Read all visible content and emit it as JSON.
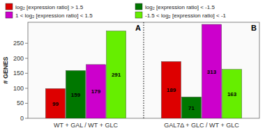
{
  "chart_data": {
    "type": "bar",
    "categories": [
      "WT + GAL / WT + GLC",
      "GAL7Δ + GLC / WT + GLC"
    ],
    "series": [
      {
        "name": "log₂ [expression ratio] > 1.5",
        "color": "#dd0000",
        "values": [
          99,
          189
        ]
      },
      {
        "name": "log₂ [expression ratio] < -1.5",
        "color": "#007700",
        "values": [
          159,
          71
        ]
      },
      {
        "name": "1 < log₂ [expression ratio] < 1.5",
        "color": "#cc00cc",
        "values": [
          179,
          313
        ]
      },
      {
        "name": "-1.5 < log₂ [expression ratio] < -1",
        "color": "#66ee00",
        "values": [
          291,
          163
        ]
      }
    ],
    "ylabel": "# GENES",
    "ylim": [
      0,
      320
    ],
    "yticks": [
      0,
      50,
      100,
      150,
      200,
      250
    ],
    "annotations": [
      "A",
      "B"
    ],
    "data_labels": true,
    "grid": false,
    "legend": "top"
  }
}
